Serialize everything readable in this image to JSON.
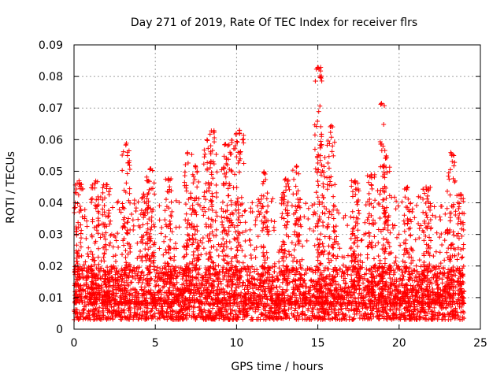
{
  "chart_data": {
    "type": "scatter",
    "title": "Day 271 of 2019, Rate Of TEC Index for receiver flrs",
    "xlabel": "GPS time / hours",
    "ylabel": "ROTI / TECUs",
    "xlim": [
      0,
      25
    ],
    "ylim": [
      0,
      0.09
    ],
    "xticks": [
      "0",
      "5",
      "10",
      "15",
      "20",
      "25"
    ],
    "yticks": [
      "0",
      "0.01",
      "0.02",
      "0.03",
      "0.04",
      "0.05",
      "0.06",
      "0.07",
      "0.08",
      "0.09"
    ],
    "grid": true,
    "marker": "+",
    "color": "#ff0000",
    "series": [
      {
        "name": "ROTI",
        "x_range": [
          0,
          24
        ],
        "typical_band": [
          0.003,
          0.02
        ],
        "peaks": [
          {
            "x": 0.3,
            "y": 0.047
          },
          {
            "x": 1.3,
            "y": 0.047
          },
          {
            "x": 2.0,
            "y": 0.046
          },
          {
            "x": 3.2,
            "y": 0.059
          },
          {
            "x": 4.3,
            "y": 0.043
          },
          {
            "x": 4.7,
            "y": 0.051
          },
          {
            "x": 5.8,
            "y": 0.048
          },
          {
            "x": 7.0,
            "y": 0.056
          },
          {
            "x": 7.5,
            "y": 0.052
          },
          {
            "x": 8.2,
            "y": 0.06
          },
          {
            "x": 8.6,
            "y": 0.063
          },
          {
            "x": 9.3,
            "y": 0.059
          },
          {
            "x": 9.7,
            "y": 0.06
          },
          {
            "x": 10.2,
            "y": 0.063
          },
          {
            "x": 11.7,
            "y": 0.05
          },
          {
            "x": 13.0,
            "y": 0.048
          },
          {
            "x": 13.7,
            "y": 0.052
          },
          {
            "x": 15.0,
            "y": 0.083
          },
          {
            "x": 15.2,
            "y": 0.062
          },
          {
            "x": 15.8,
            "y": 0.065
          },
          {
            "x": 17.3,
            "y": 0.047
          },
          {
            "x": 18.3,
            "y": 0.049
          },
          {
            "x": 18.9,
            "y": 0.072
          },
          {
            "x": 19.2,
            "y": 0.055
          },
          {
            "x": 20.5,
            "y": 0.045
          },
          {
            "x": 21.7,
            "y": 0.045
          },
          {
            "x": 23.2,
            "y": 0.056
          },
          {
            "x": 23.8,
            "y": 0.043
          }
        ]
      }
    ]
  }
}
